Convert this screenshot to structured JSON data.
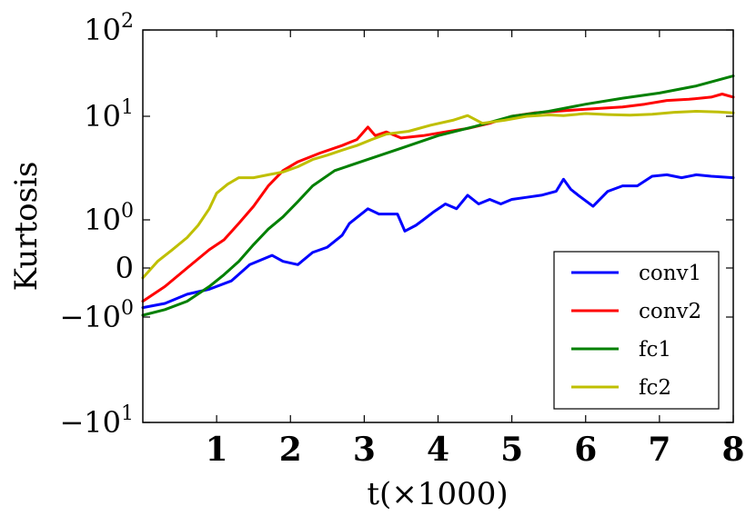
{
  "chart_data": {
    "type": "line",
    "title": "",
    "xlabel": "t(×1000)",
    "ylabel": "Kurtosis",
    "xlim": [
      0,
      8
    ],
    "ylim": [
      -10,
      100
    ],
    "yscale": "symlog",
    "yscale_linthresh": 1,
    "x_ticks": [
      1,
      2,
      3,
      4,
      5,
      6,
      7,
      8
    ],
    "x_tick_labels": [
      "1",
      "2",
      "3",
      "4",
      "5",
      "6",
      "7",
      "8"
    ],
    "y_ticks": [
      {
        "value": 100,
        "base": "10",
        "exp": "2",
        "sign": ""
      },
      {
        "value": 10,
        "base": "10",
        "exp": "1",
        "sign": ""
      },
      {
        "value": 1,
        "base": "10",
        "exp": "0",
        "sign": ""
      },
      {
        "value": 0,
        "label": "0"
      },
      {
        "value": -1,
        "base": "10",
        "exp": "0",
        "sign": "−"
      },
      {
        "value": -10,
        "base": "10",
        "exp": "1",
        "sign": "−"
      }
    ],
    "grid": false,
    "legend_position": "bottom-right",
    "series": [
      {
        "name": "conv1",
        "color": "#0000ff",
        "x": [
          0.0,
          0.3,
          0.6,
          0.9,
          1.2,
          1.45,
          1.75,
          1.9,
          2.1,
          2.3,
          2.5,
          2.7,
          2.8,
          3.05,
          3.2,
          3.45,
          3.55,
          3.7,
          3.8,
          3.95,
          4.1,
          4.25,
          4.4,
          4.55,
          4.7,
          4.85,
          5.0,
          5.2,
          5.4,
          5.6,
          5.7,
          5.8,
          5.9,
          6.1,
          6.3,
          6.5,
          6.7,
          6.9,
          7.1,
          7.3,
          7.5,
          7.7,
          8.0
        ],
        "y": [
          -0.75,
          -0.65,
          -0.45,
          -0.35,
          -0.2,
          0.05,
          0.2,
          0.1,
          0.05,
          0.25,
          0.35,
          0.6,
          0.9,
          1.4,
          1.2,
          1.2,
          0.7,
          0.85,
          1.0,
          1.3,
          1.6,
          1.4,
          2.0,
          1.6,
          1.8,
          1.6,
          1.8,
          1.9,
          2.0,
          2.2,
          2.9,
          2.3,
          2.0,
          1.5,
          2.2,
          2.5,
          2.5,
          3.1,
          3.2,
          3.0,
          3.2,
          3.1,
          3.0
        ]
      },
      {
        "name": "conv2",
        "color": "#ff0000",
        "x": [
          0.0,
          0.3,
          0.6,
          0.9,
          1.1,
          1.3,
          1.5,
          1.7,
          1.9,
          2.1,
          2.4,
          2.7,
          2.9,
          3.05,
          3.15,
          3.3,
          3.5,
          3.8,
          4.1,
          4.4,
          4.7,
          5.0,
          5.3,
          5.6,
          5.9,
          6.2,
          6.5,
          6.8,
          7.1,
          7.4,
          7.7,
          7.85,
          8.0
        ],
        "y": [
          -0.6,
          -0.3,
          0.0,
          0.3,
          0.5,
          0.9,
          1.5,
          2.5,
          3.5,
          4.2,
          5.0,
          5.8,
          6.5,
          8.2,
          7.0,
          7.5,
          6.7,
          7.0,
          7.5,
          8.0,
          8.8,
          10.0,
          11.0,
          11.5,
          12.0,
          12.5,
          13.0,
          14.0,
          15.5,
          16.0,
          17.0,
          18.5,
          17.0
        ]
      },
      {
        "name": "fc1",
        "color": "#008000",
        "x": [
          0.0,
          0.3,
          0.6,
          0.9,
          1.1,
          1.3,
          1.5,
          1.7,
          1.9,
          2.1,
          2.3,
          2.6,
          3.0,
          3.5,
          4.0,
          4.5,
          5.0,
          5.5,
          6.0,
          6.5,
          7.0,
          7.5,
          8.0
        ],
        "y": [
          -0.95,
          -0.8,
          -0.6,
          -0.3,
          -0.1,
          0.1,
          0.4,
          0.75,
          1.1,
          1.7,
          2.5,
          3.5,
          4.3,
          5.5,
          7.0,
          8.3,
          10.0,
          11.5,
          14.0,
          16.5,
          19.0,
          23.0,
          30.0
        ]
      },
      {
        "name": "fc2",
        "color": "#bfbf00",
        "x": [
          0.0,
          0.2,
          0.4,
          0.6,
          0.75,
          0.9,
          1.0,
          1.15,
          1.3,
          1.5,
          1.7,
          1.9,
          2.1,
          2.3,
          2.5,
          2.7,
          2.9,
          3.1,
          3.3,
          3.6,
          3.9,
          4.2,
          4.4,
          4.6,
          4.9,
          5.2,
          5.5,
          5.7,
          6.0,
          6.3,
          6.6,
          6.9,
          7.2,
          7.5,
          7.8,
          8.0
        ],
        "y": [
          -0.15,
          0.1,
          0.3,
          0.55,
          0.85,
          1.4,
          2.1,
          2.6,
          3.0,
          3.0,
          3.2,
          3.4,
          3.8,
          4.4,
          4.8,
          5.3,
          5.8,
          6.5,
          7.2,
          7.6,
          8.5,
          9.3,
          10.2,
          8.8,
          9.3,
          10.0,
          10.4,
          10.2,
          10.8,
          10.5,
          10.3,
          10.6,
          11.2,
          11.5,
          11.3,
          11.0
        ]
      }
    ]
  }
}
